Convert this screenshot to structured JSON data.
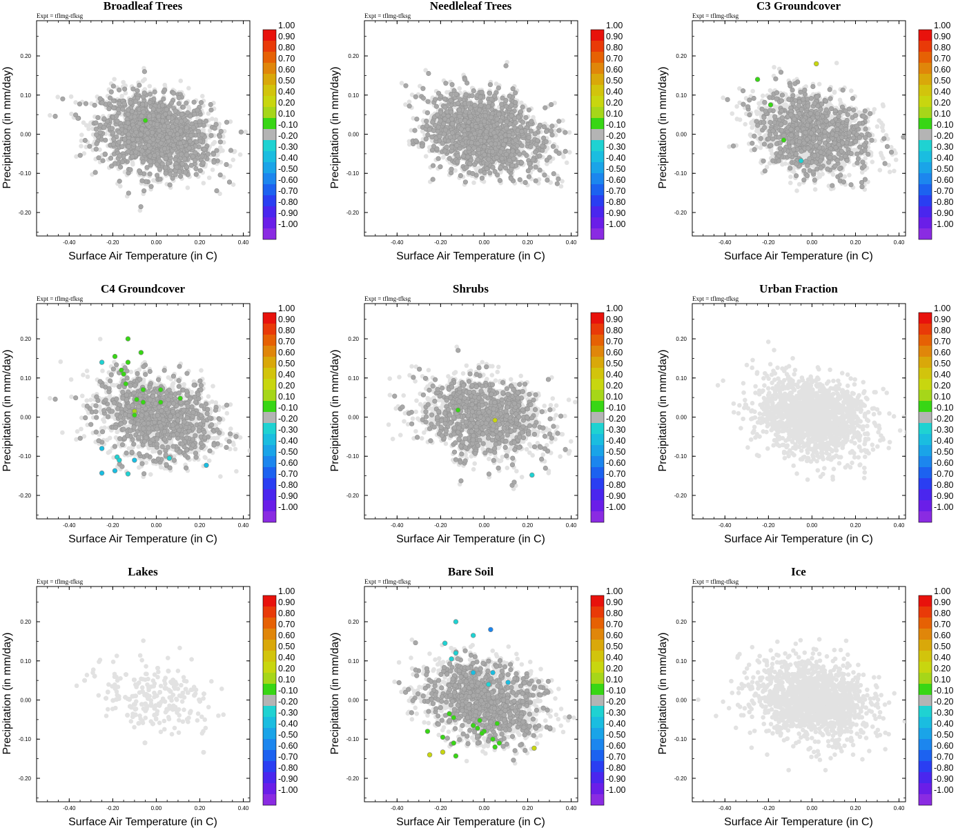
{
  "figure": {
    "experiment_label": "Expt = tflmg-tfksg",
    "xlabel": "Surface Air Temperature (in C)",
    "ylabel": "Precipitation (in mm/day)"
  },
  "colorbar": {
    "labels": [
      "1.00",
      "0.90",
      "0.80",
      "0.70",
      "0.60",
      "0.50",
      "0.40",
      "0.20",
      "0.10",
      "-0.10",
      "-0.20",
      "-0.30",
      "-0.40",
      "-0.50",
      "-0.60",
      "-0.70",
      "-0.80",
      "-0.90",
      "-1.00"
    ],
    "colors": [
      "#e8120c",
      "#e93a08",
      "#e66104",
      "#e0860a",
      "#d9a80a",
      "#d2c40c",
      "#c8d60f",
      "#a6d619",
      "#38d615",
      "#b4b4b4",
      "#1fd2d2",
      "#1abde0",
      "#1aa4e8",
      "#1c86ee",
      "#1c62f0",
      "#2a3ef2",
      "#4a26ee",
      "#6a1ee8",
      "#8a2be2"
    ]
  },
  "chart_data": [
    {
      "type": "scatter",
      "title": "Broadleaf Trees",
      "xlabel": "Surface Air Temperature (in C)",
      "ylabel": "Precipitation (in mm/day)",
      "xlim": [
        -0.55,
        0.43
      ],
      "ylim": [
        -0.26,
        0.29
      ],
      "xticks": [
        "-0.40",
        "-0.20",
        "0.00",
        "0.20",
        "0.40"
      ],
      "yticks": [
        "0.20",
        "0.10",
        "0.00",
        "-0.10",
        "-0.20"
      ],
      "density": "dense",
      "colored_points": [
        {
          "x": -0.05,
          "y": 0.035,
          "value": 0.1
        }
      ]
    },
    {
      "type": "scatter",
      "title": "Needleleaf Trees",
      "xlabel": "Surface Air Temperature (in C)",
      "ylabel": "Precipitation (in mm/day)",
      "xlim": [
        -0.55,
        0.43
      ],
      "ylim": [
        -0.26,
        0.29
      ],
      "xticks": [
        "-0.40",
        "-0.20",
        "0.00",
        "0.20",
        "0.40"
      ],
      "yticks": [
        "0.20",
        "0.10",
        "0.00",
        "-0.10",
        "-0.20"
      ],
      "density": "dense",
      "colored_points": []
    },
    {
      "type": "scatter",
      "title": "C3 Groundcover",
      "xlabel": "Surface Air Temperature (in C)",
      "ylabel": "Precipitation (in mm/day)",
      "xlim": [
        -0.55,
        0.43
      ],
      "ylim": [
        -0.26,
        0.29
      ],
      "xticks": [
        "-0.40",
        "-0.20",
        "0.00",
        "0.20",
        "0.40"
      ],
      "yticks": [
        "0.20",
        "0.10",
        "0.00",
        "-0.10",
        "-0.20"
      ],
      "density": "medium",
      "colored_points": [
        {
          "x": 0.02,
          "y": 0.18,
          "value": 0.4
        },
        {
          "x": -0.25,
          "y": 0.14,
          "value": 0.1
        },
        {
          "x": -0.19,
          "y": 0.075,
          "value": 0.1
        },
        {
          "x": -0.13,
          "y": -0.015,
          "value": 0.1
        },
        {
          "x": -0.05,
          "y": -0.068,
          "value": -0.2
        }
      ]
    },
    {
      "type": "scatter",
      "title": "C4 Groundcover",
      "xlabel": "Surface Air Temperature (in C)",
      "ylabel": "Precipitation (in mm/day)",
      "xlim": [
        -0.55,
        0.43
      ],
      "ylim": [
        -0.26,
        0.29
      ],
      "xticks": [
        "-0.40",
        "-0.20",
        "0.00",
        "0.20",
        "0.40"
      ],
      "yticks": [
        "0.20",
        "0.10",
        "0.00",
        "-0.10",
        "-0.20"
      ],
      "density": "medium",
      "colored_points": [
        {
          "x": -0.13,
          "y": 0.2,
          "value": 0.1
        },
        {
          "x": -0.07,
          "y": 0.165,
          "value": 0.1
        },
        {
          "x": -0.19,
          "y": 0.155,
          "value": 0.1
        },
        {
          "x": -0.13,
          "y": 0.14,
          "value": 0.1
        },
        {
          "x": -0.16,
          "y": 0.12,
          "value": 0.1
        },
        {
          "x": -0.15,
          "y": 0.11,
          "value": 0.1
        },
        {
          "x": -0.14,
          "y": 0.085,
          "value": 0.1
        },
        {
          "x": -0.06,
          "y": 0.07,
          "value": 0.1
        },
        {
          "x": 0.02,
          "y": 0.07,
          "value": 0.1
        },
        {
          "x": -0.09,
          "y": 0.045,
          "value": 0.1
        },
        {
          "x": 0.02,
          "y": 0.038,
          "value": 0.1
        },
        {
          "x": 0.11,
          "y": 0.048,
          "value": 0.1
        },
        {
          "x": -0.06,
          "y": 0.038,
          "value": 0.1
        },
        {
          "x": -0.1,
          "y": 0.015,
          "value": 0.2
        },
        {
          "x": -0.1,
          "y": 0.005,
          "value": 0.1
        },
        {
          "x": -0.25,
          "y": 0.14,
          "value": -0.2
        },
        {
          "x": -0.25,
          "y": -0.08,
          "value": -0.3
        },
        {
          "x": -0.18,
          "y": -0.102,
          "value": -0.2
        },
        {
          "x": -0.17,
          "y": -0.11,
          "value": -0.2
        },
        {
          "x": -0.1,
          "y": -0.11,
          "value": -0.3
        },
        {
          "x": 0.06,
          "y": -0.105,
          "value": -0.2
        },
        {
          "x": 0.23,
          "y": -0.123,
          "value": -0.3
        },
        {
          "x": -0.25,
          "y": -0.143,
          "value": -0.3
        },
        {
          "x": -0.19,
          "y": -0.137,
          "value": -0.3
        },
        {
          "x": -0.13,
          "y": -0.145,
          "value": -0.2
        }
      ]
    },
    {
      "type": "scatter",
      "title": "Shrubs",
      "xlabel": "Surface Air Temperature (in C)",
      "ylabel": "Precipitation (in mm/day)",
      "xlim": [
        -0.55,
        0.43
      ],
      "ylim": [
        -0.26,
        0.29
      ],
      "xticks": [
        "-0.40",
        "-0.20",
        "0.00",
        "0.20",
        "0.40"
      ],
      "yticks": [
        "0.20",
        "0.10",
        "0.00",
        "-0.10",
        "-0.20"
      ],
      "density": "medium",
      "colored_points": [
        {
          "x": -0.12,
          "y": 0.018,
          "value": 0.1
        },
        {
          "x": 0.05,
          "y": -0.008,
          "value": 0.4
        },
        {
          "x": 0.22,
          "y": -0.148,
          "value": -0.2
        }
      ]
    },
    {
      "type": "scatter",
      "title": "Urban Fraction",
      "xlabel": "Surface Air Temperature (in C)",
      "ylabel": "Precipitation (in mm/day)",
      "xlim": [
        -0.55,
        0.43
      ],
      "ylim": [
        -0.26,
        0.29
      ],
      "xticks": [
        "-0.40",
        "-0.20",
        "0.00",
        "0.20",
        "0.40"
      ],
      "yticks": [
        "0.20",
        "0.10",
        "0.00",
        "-0.10",
        "-0.20"
      ],
      "density": "none",
      "colored_points": []
    },
    {
      "type": "scatter",
      "title": "Lakes",
      "xlabel": "Surface Air Temperature (in C)",
      "ylabel": "Precipitation (in mm/day)",
      "xlim": [
        -0.55,
        0.43
      ],
      "ylim": [
        -0.26,
        0.29
      ],
      "xticks": [
        "-0.40",
        "-0.20",
        "0.00",
        "0.20",
        "0.40"
      ],
      "yticks": [
        "0.20",
        "0.10",
        "0.00",
        "-0.10",
        "-0.20"
      ],
      "density": "none",
      "colored_points": []
    },
    {
      "type": "scatter",
      "title": "Bare Soil",
      "xlabel": "Surface Air Temperature (in C)",
      "ylabel": "Precipitation (in mm/day)",
      "xlim": [
        -0.55,
        0.43
      ],
      "ylim": [
        -0.26,
        0.29
      ],
      "xticks": [
        "-0.40",
        "-0.20",
        "0.00",
        "0.20",
        "0.40"
      ],
      "yticks": [
        "0.20",
        "0.10",
        "0.00",
        "-0.10",
        "-0.20"
      ],
      "density": "medium",
      "colored_points": [
        {
          "x": 0.03,
          "y": 0.18,
          "value": -0.5
        },
        {
          "x": -0.13,
          "y": 0.2,
          "value": -0.2
        },
        {
          "x": -0.05,
          "y": 0.165,
          "value": -0.2
        },
        {
          "x": -0.18,
          "y": 0.145,
          "value": -0.2
        },
        {
          "x": -0.13,
          "y": 0.12,
          "value": -0.2
        },
        {
          "x": -0.15,
          "y": 0.105,
          "value": -0.2
        },
        {
          "x": -0.05,
          "y": 0.07,
          "value": -0.3
        },
        {
          "x": 0.04,
          "y": 0.07,
          "value": -0.3
        },
        {
          "x": 0.11,
          "y": 0.045,
          "value": -0.3
        },
        {
          "x": 0.02,
          "y": 0.04,
          "value": -0.2
        },
        {
          "x": -0.16,
          "y": -0.035,
          "value": 0.1
        },
        {
          "x": -0.14,
          "y": -0.045,
          "value": 0.1
        },
        {
          "x": -0.05,
          "y": -0.065,
          "value": 0.1
        },
        {
          "x": -0.03,
          "y": -0.072,
          "value": 0.1
        },
        {
          "x": -0.02,
          "y": -0.052,
          "value": 0.1
        },
        {
          "x": 0.0,
          "y": -0.08,
          "value": 0.1
        },
        {
          "x": -0.01,
          "y": -0.085,
          "value": 0.1
        },
        {
          "x": 0.06,
          "y": -0.06,
          "value": 0.1
        },
        {
          "x": -0.26,
          "y": -0.08,
          "value": 0.1
        },
        {
          "x": -0.19,
          "y": -0.095,
          "value": 0.1
        },
        {
          "x": -0.14,
          "y": -0.11,
          "value": 0.1
        },
        {
          "x": 0.04,
          "y": -0.1,
          "value": 0.1
        },
        {
          "x": 0.07,
          "y": -0.11,
          "value": 0.1
        },
        {
          "x": 0.05,
          "y": -0.12,
          "value": 0.1
        },
        {
          "x": 0.23,
          "y": -0.123,
          "value": 0.4
        },
        {
          "x": -0.25,
          "y": -0.14,
          "value": 0.4
        },
        {
          "x": -0.19,
          "y": -0.133,
          "value": 0.4
        },
        {
          "x": -0.13,
          "y": -0.143,
          "value": 0.1
        }
      ]
    },
    {
      "type": "scatter",
      "title": "Ice",
      "xlabel": "Surface Air Temperature (in C)",
      "ylabel": "Precipitation (in mm/day)",
      "xlim": [
        -0.55,
        0.43
      ],
      "ylim": [
        -0.26,
        0.29
      ],
      "xticks": [
        "-0.40",
        "-0.20",
        "0.00",
        "0.20",
        "0.40"
      ],
      "yticks": [
        "0.20",
        "0.10",
        "0.00",
        "-0.10",
        "-0.20"
      ],
      "density": "none",
      "colored_points": []
    }
  ]
}
